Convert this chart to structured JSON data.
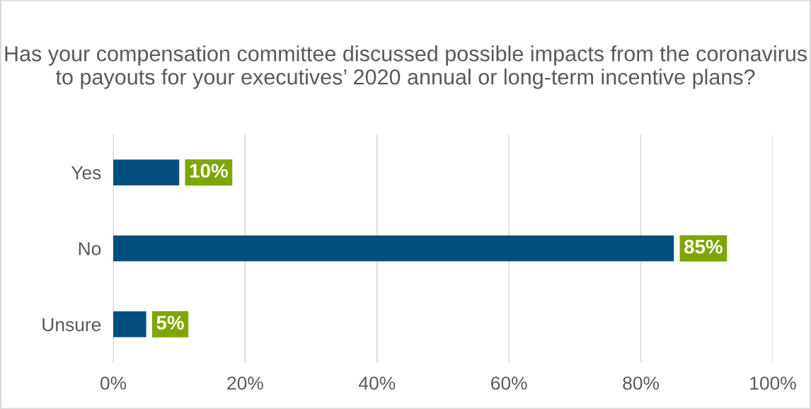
{
  "chart_data": {
    "type": "bar",
    "orientation": "horizontal",
    "title": "Has your compensation committee discussed possible impacts from the coronavirus to payouts for your executives’ 2020 annual or long-term incentive plans?",
    "categories": [
      "Yes",
      "No",
      "Unsure"
    ],
    "values": [
      10,
      85,
      5
    ],
    "color": "#004f7e",
    "value_labels": [
      "10%",
      "85%",
      "5%"
    ],
    "xlim": [
      0,
      100
    ],
    "xticks": [
      {
        "value": 0,
        "label": "0%"
      },
      {
        "value": 20,
        "label": "20%"
      },
      {
        "value": 40,
        "label": "40%"
      },
      {
        "value": 60,
        "label": "60%"
      },
      {
        "value": 80,
        "label": "80%"
      },
      {
        "value": 100,
        "label": "100%"
      }
    ],
    "grid": "x",
    "legend": false
  }
}
